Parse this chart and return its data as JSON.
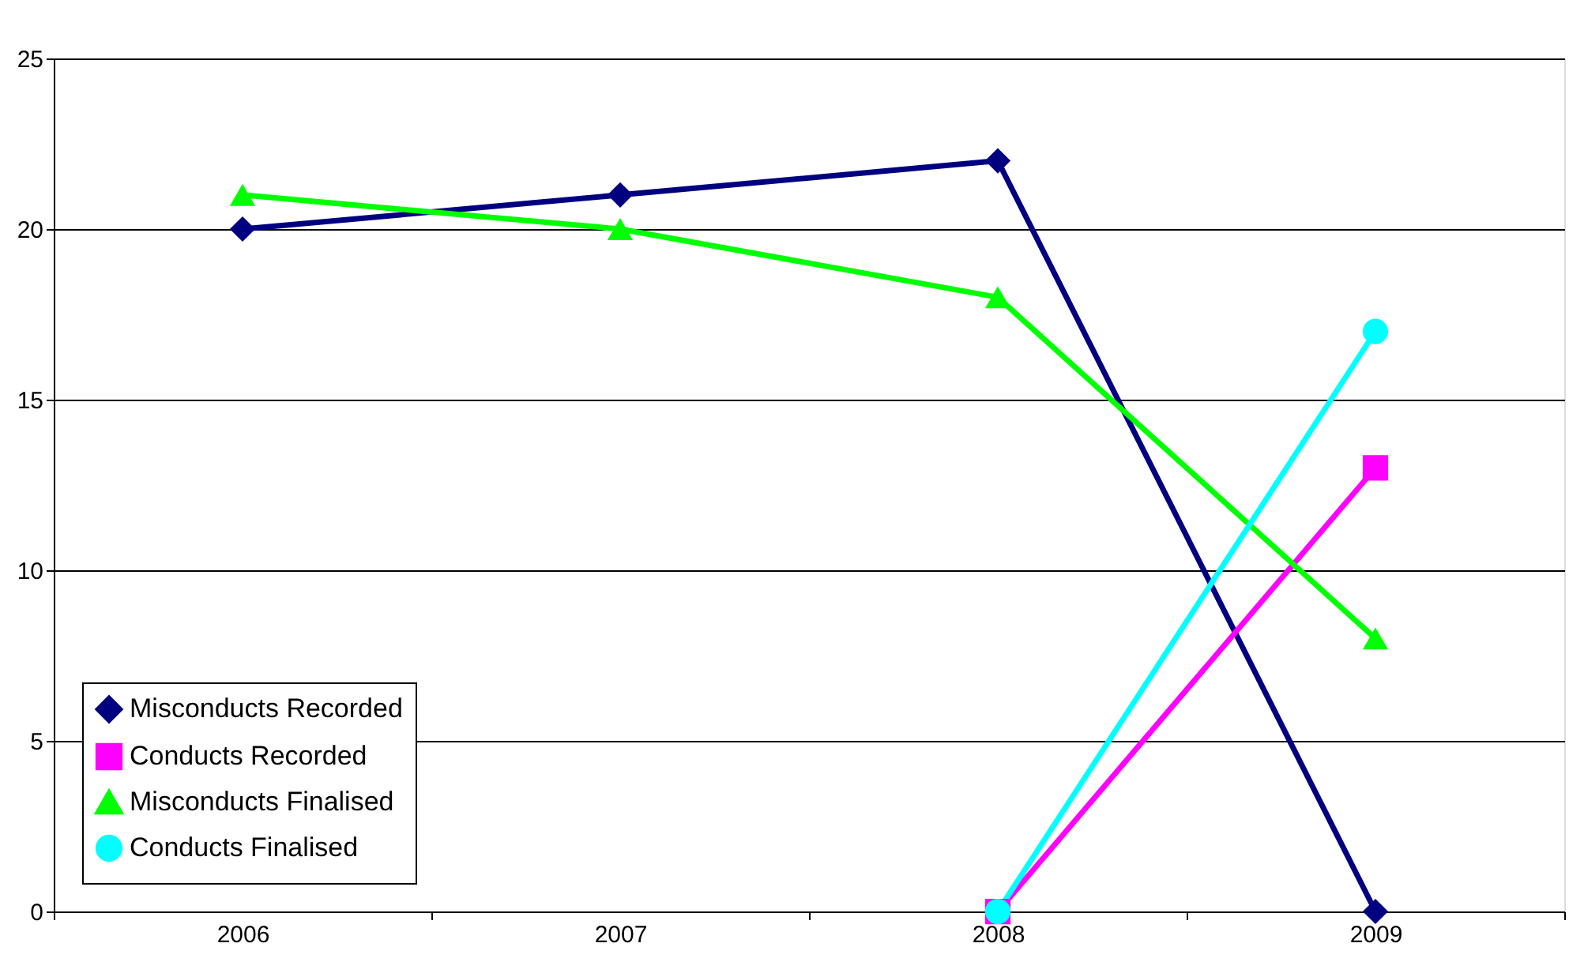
{
  "chart_data": {
    "type": "line",
    "categories": [
      "2006",
      "2007",
      "2008",
      "2009"
    ],
    "series": [
      {
        "name": "Misconducts Recorded",
        "color": "#000080",
        "marker": "diamond",
        "values": [
          20,
          21,
          22,
          0
        ]
      },
      {
        "name": "Conducts Recorded",
        "color": "#ff00ff",
        "marker": "square",
        "values": [
          null,
          null,
          0,
          13
        ]
      },
      {
        "name": "Misconducts Finalised",
        "color": "#00ff00",
        "marker": "triangle",
        "values": [
          21,
          20,
          18,
          8
        ]
      },
      {
        "name": "Conducts Finalised",
        "color": "#00ffff",
        "marker": "circle",
        "values": [
          null,
          null,
          0,
          17
        ]
      }
    ],
    "ylim": [
      0,
      25
    ],
    "yticks": [
      0,
      5,
      10,
      15,
      20,
      25
    ],
    "grid": "y",
    "legend": "bottom left",
    "line_style": "solid"
  }
}
